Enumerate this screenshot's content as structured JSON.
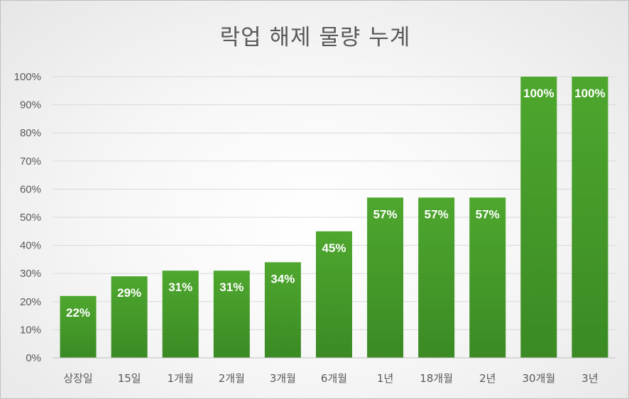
{
  "chart_data": {
    "type": "bar",
    "title": "락업 해제 물량 누계",
    "categories": [
      "상장일",
      "15일",
      "1개월",
      "2개월",
      "3개월",
      "6개월",
      "1년",
      "18개월",
      "2년",
      "30개월",
      "3년"
    ],
    "values": [
      22,
      29,
      31,
      31,
      34,
      45,
      57,
      57,
      57,
      100,
      100
    ],
    "data_labels": [
      "22%",
      "29%",
      "31%",
      "31%",
      "34%",
      "45%",
      "57%",
      "57%",
      "57%",
      "100%",
      "100%"
    ],
    "ylim": [
      0,
      100
    ],
    "y_ticks": [
      0,
      10,
      20,
      30,
      40,
      50,
      60,
      70,
      80,
      90,
      100
    ],
    "y_tick_labels": [
      "0%",
      "10%",
      "20%",
      "30%",
      "40%",
      "50%",
      "60%",
      "70%",
      "80%",
      "90%",
      "100%"
    ],
    "grid": true,
    "legend": "none",
    "colors": {
      "bar_top": "#4ea72e",
      "bar_bottom": "#3b8a24",
      "grid": "#d9d9d9",
      "text": "#595959"
    }
  }
}
